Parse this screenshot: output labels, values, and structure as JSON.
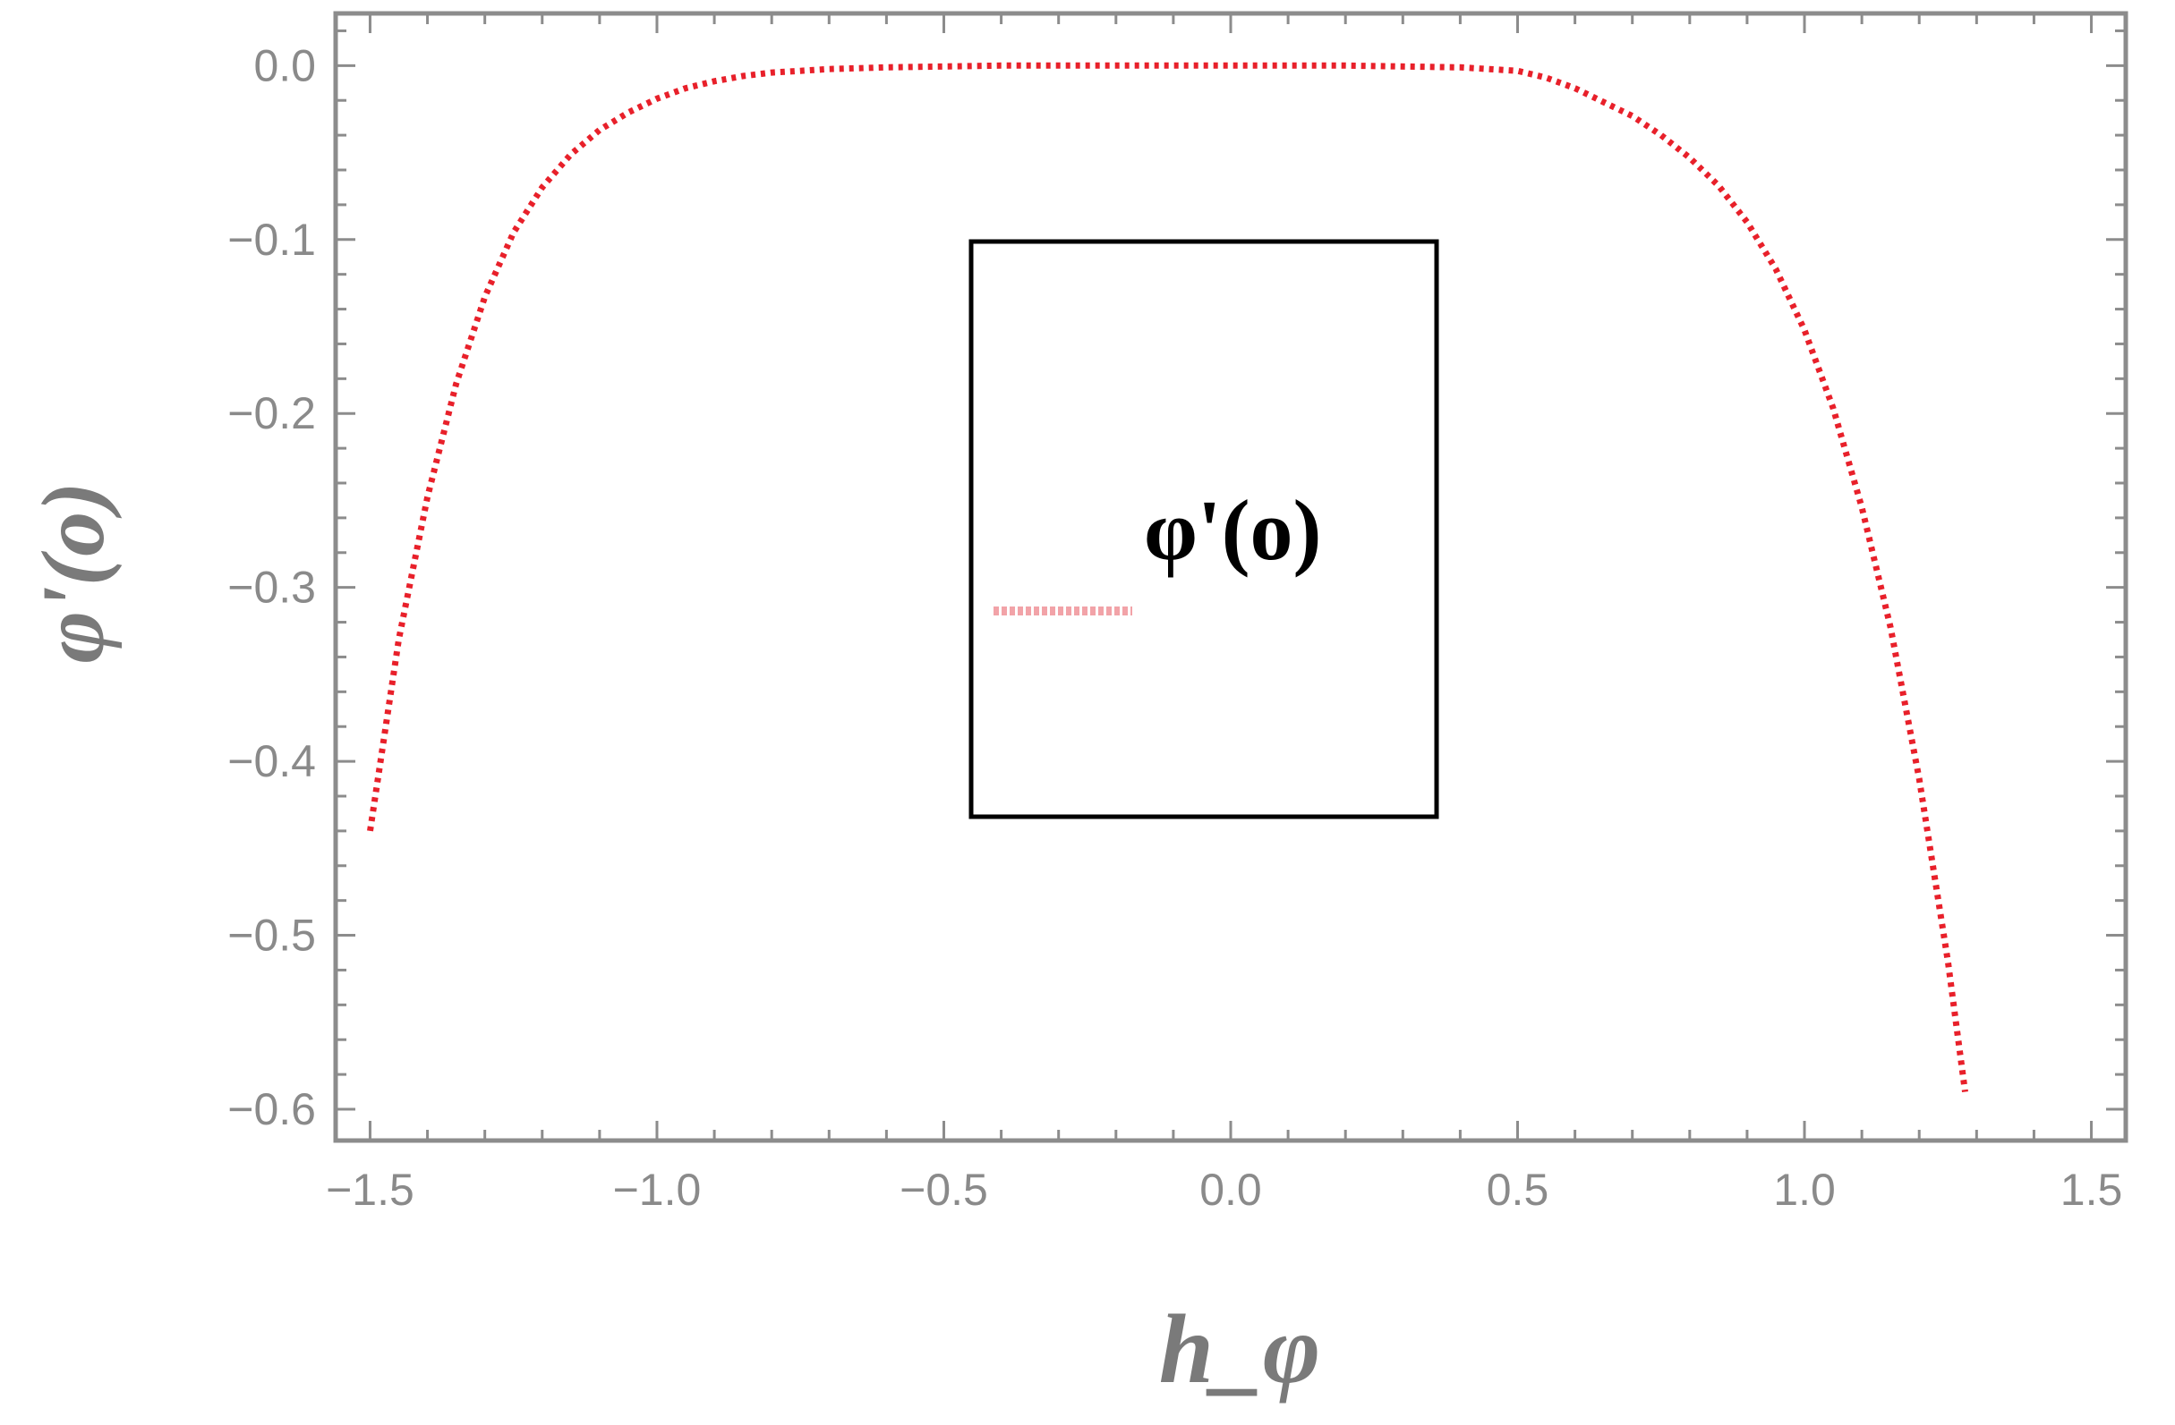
{
  "chart_data": {
    "type": "line",
    "title": "",
    "xlabel": "h_φ",
    "ylabel": "φ'(o)",
    "xlim": [
      -1.56,
      1.56
    ],
    "ylim": [
      -0.618,
      0.03
    ],
    "xticks": [
      -1.5,
      -1.0,
      -0.5,
      0.0,
      0.5,
      1.0,
      1.5
    ],
    "xtick_labels": [
      "−1.5",
      "−1.0",
      "−0.5",
      "0.0",
      "0.5",
      "1.0",
      "1.5"
    ],
    "yticks": [
      0.0,
      -0.1,
      -0.2,
      -0.3,
      -0.4,
      -0.5,
      -0.6
    ],
    "ytick_labels": [
      "0.0",
      "−0.1",
      "−0.2",
      "−0.3",
      "−0.4",
      "−0.5",
      "−0.6"
    ],
    "grid": false,
    "legend_position": "center",
    "colors": {
      "series": "#e8202a",
      "frame": "#8c8c8c",
      "legend_border": "#000000"
    },
    "series": [
      {
        "name": "φ'(o)",
        "style": "dotted",
        "x": [
          -1.5,
          -1.45,
          -1.4,
          -1.35,
          -1.3,
          -1.25,
          -1.2,
          -1.15,
          -1.1,
          -1.05,
          -1.0,
          -0.95,
          -0.9,
          -0.85,
          -0.8,
          -0.75,
          -0.7,
          -0.6,
          -0.5,
          -0.4,
          -0.2,
          0.0,
          0.2,
          0.4,
          0.45,
          0.5,
          0.55,
          0.6,
          0.65,
          0.7,
          0.75,
          0.8,
          0.85,
          0.9,
          0.95,
          1.0,
          1.05,
          1.1,
          1.15,
          1.2,
          1.25,
          1.28
        ],
        "y": [
          -0.44,
          -0.33,
          -0.248,
          -0.183,
          -0.133,
          -0.096,
          -0.07,
          -0.051,
          -0.037,
          -0.027,
          -0.019,
          -0.013,
          -0.009,
          -0.006,
          -0.004,
          -0.003,
          -0.002,
          -0.001,
          -0.0005,
          0.0,
          0.0,
          0.0,
          0.0,
          -0.001,
          -0.002,
          -0.003,
          -0.007,
          -0.013,
          -0.021,
          -0.029,
          -0.04,
          -0.053,
          -0.069,
          -0.09,
          -0.117,
          -0.152,
          -0.197,
          -0.254,
          -0.323,
          -0.41,
          -0.515,
          -0.59
        ]
      }
    ]
  }
}
